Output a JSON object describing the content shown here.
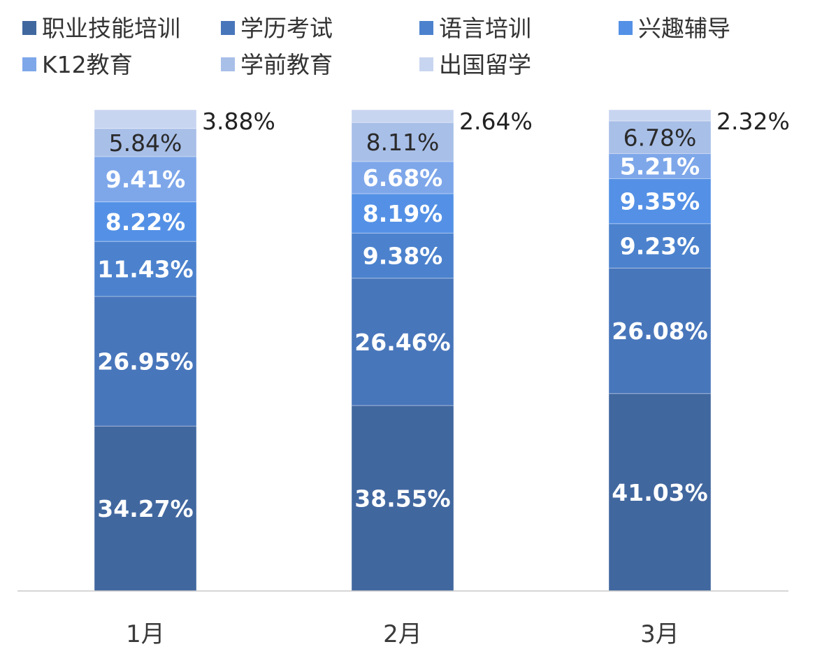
{
  "chart_data": {
    "type": "bar",
    "stacked": true,
    "categories": [
      "1月",
      "2月",
      "3月"
    ],
    "series": [
      {
        "name": "职业技能培训",
        "color": "#41679f",
        "labels": [
          "34.27%",
          "38.55%",
          "41.03%"
        ],
        "values": [
          34.27,
          38.55,
          41.03
        ]
      },
      {
        "name": "学历考试",
        "color": "#4876bb",
        "labels": [
          "26.95%",
          "26.46%",
          "26.08%"
        ],
        "values": [
          26.95,
          26.46,
          26.08
        ]
      },
      {
        "name": "语言培训",
        "color": "#4c82cd",
        "labels": [
          "11.43%",
          "9.38%",
          "9.23%"
        ],
        "values": [
          11.43,
          9.38,
          9.23
        ]
      },
      {
        "name": "兴趣辅导",
        "color": "#5491e6",
        "labels": [
          "8.22%",
          "8.19%",
          "9.35%"
        ],
        "values": [
          8.22,
          8.19,
          9.35
        ]
      },
      {
        "name": "K12教育",
        "color": "#7ea7ea",
        "labels": [
          "9.41%",
          "6.68%",
          "5.21%"
        ],
        "values": [
          9.41,
          6.68,
          5.21
        ]
      },
      {
        "name": "学前教育",
        "color": "#a8bfe8",
        "labels": [
          "5.84%",
          "8.11%",
          "6.78%"
        ],
        "values": [
          5.84,
          8.11,
          6.78
        ]
      },
      {
        "name": "出国留学",
        "color": "#c8d5f0",
        "labels": [
          "3.88%",
          "2.64%",
          "2.32%"
        ],
        "values": [
          3.88,
          2.64,
          2.32
        ]
      }
    ],
    "ylim": [
      0,
      100
    ],
    "grid": false,
    "legend_position": "top",
    "axis_color": "#c9c9c9"
  }
}
